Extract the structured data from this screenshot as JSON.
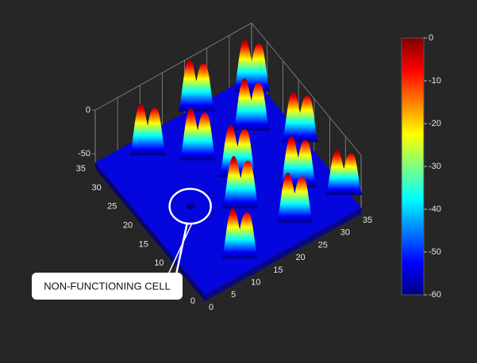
{
  "chart_data": {
    "type": "surface",
    "annotation": "NON-FUNCTIONING CELL",
    "xlim": [
      0,
      35
    ],
    "xticks": [
      0,
      5,
      10,
      15,
      20,
      25,
      30,
      35
    ],
    "ylim": [
      0,
      35
    ],
    "yticks": [
      0,
      5,
      10,
      15,
      20,
      25,
      30,
      35
    ],
    "zlim": [
      -60,
      0
    ],
    "zticks": [
      0,
      -50
    ],
    "clim": [
      -60,
      0
    ],
    "cticks": [
      0,
      -10,
      -20,
      -30,
      -40,
      -50,
      -60
    ],
    "colormap": [
      "#00007f",
      "#0000ff",
      "#007fff",
      "#00ffff",
      "#7fff7f",
      "#ffff00",
      "#ff7f00",
      "#ff0000",
      "#7f0000"
    ],
    "peaks": {
      "x": [
        33,
        22,
        28,
        34,
        9,
        16,
        20,
        28,
        34,
        16.5,
        23,
        10
      ],
      "y": [
        32,
        34,
        25,
        18,
        31,
        25,
        18,
        10,
        4,
        12,
        4,
        3
      ],
      "z": [
        0,
        0,
        0,
        -2,
        -1,
        0,
        0,
        -1,
        -8,
        0,
        -3,
        -2
      ]
    },
    "highlight": {
      "x": 9,
      "y": 17.5,
      "z": -55
    }
  }
}
